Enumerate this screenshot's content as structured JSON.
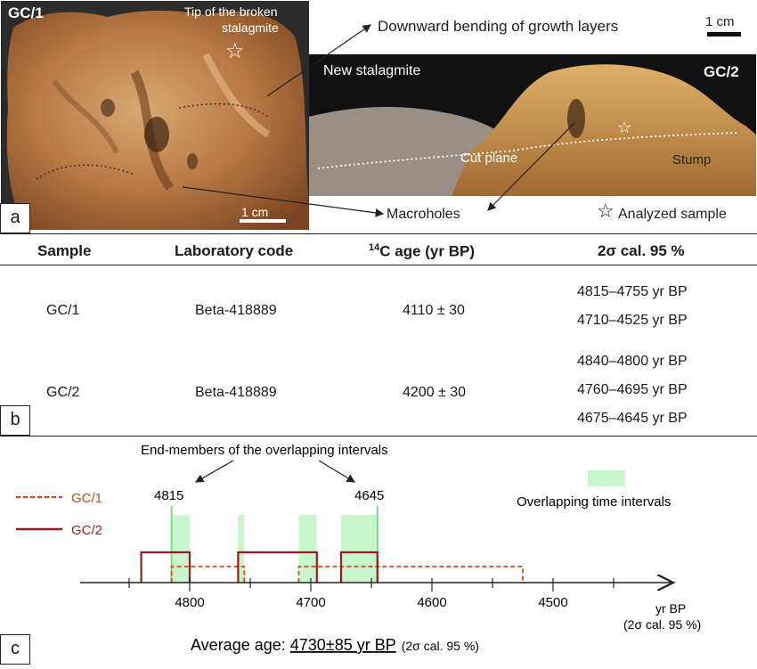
{
  "panel_a": {
    "label": "a",
    "sample1_label": "GC/1",
    "sample2_label": "GC/2",
    "tip_label_line1": "Tip of the broken",
    "tip_label_line2": "stalagmite",
    "bending_label": "Downward bending of growth layers",
    "scale_top_label": "1 cm",
    "scale_bottom_label": "1 cm",
    "new_stalagmite_label": "New stalagmite",
    "cut_plane_label": "Cut plane",
    "stump_label": "Stump",
    "macroholes_label": "Macroholes",
    "analyzed_sample_label": "Analyzed sample",
    "star_glyph": "☆"
  },
  "panel_b": {
    "label": "b",
    "headers": {
      "sample": "Sample",
      "lab_code": "Laboratory  code",
      "age_sup": "14",
      "age": "C age (yr BP)",
      "cal": "2σ cal. 95 %"
    },
    "rows": [
      {
        "sample": "GC/1",
        "lab_code": "Beta-418889",
        "age": "4110 ± 30",
        "cal": [
          "4815–4755 yr BP",
          "4710–4525 yr BP"
        ]
      },
      {
        "sample": "GC/2",
        "lab_code": "Beta-418889",
        "age": "4200 ± 30",
        "cal": [
          "4840–4800 yr BP",
          "4760–4695 yr BP",
          "4675–4645 yr BP"
        ]
      }
    ]
  },
  "panel_c": {
    "label": "c",
    "end_members_label": "End-members of the overlapping intervals",
    "end_left": "4815",
    "end_right": "4645",
    "legend_gc1": "GC/1",
    "legend_gc2": "GC/2",
    "overlap_label": "Overlapping time intervals",
    "axis_label_line1": "yr BP",
    "axis_label_line2": "(2σ cal. 95 %)",
    "average_prefix": "Average age: ",
    "average_value": "4730±85 yr BP",
    "average_suffix": "(2σ cal. 95 %)",
    "colors": {
      "gc1": "#cf4a1c",
      "gc2": "#9e1b1b",
      "overlap": "#c9f5cc"
    }
  },
  "chart_data": {
    "type": "bar",
    "x_axis": {
      "reversed": true,
      "ticks": [
        4800,
        4700,
        4600,
        4500
      ],
      "xlim": [
        4850,
        4410
      ]
    },
    "series": [
      {
        "name": "GC/1",
        "intervals": [
          [
            4815,
            4755
          ],
          [
            4710,
            4525
          ]
        ]
      },
      {
        "name": "GC/2",
        "intervals": [
          [
            4840,
            4800
          ],
          [
            4760,
            4695
          ],
          [
            4675,
            4645
          ]
        ]
      }
    ],
    "overlap_intervals": [
      [
        4815,
        4800
      ],
      [
        4760,
        4755
      ],
      [
        4710,
        4695
      ],
      [
        4675,
        4645
      ]
    ],
    "end_members": [
      4815,
      4645
    ]
  }
}
